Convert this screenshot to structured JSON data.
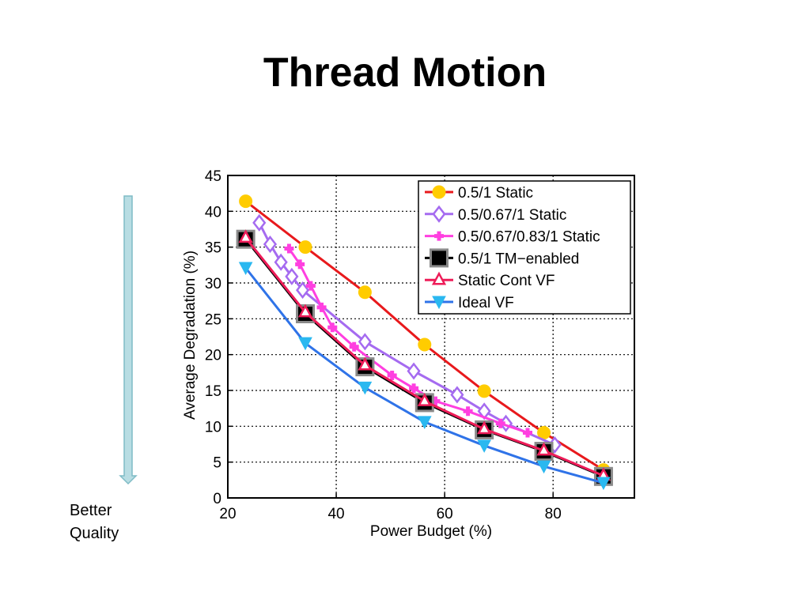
{
  "slide": {
    "title": "Thread Motion",
    "side_note": [
      "Better",
      "Quality"
    ],
    "arrow_color": "#a9d3d9"
  },
  "chart_data": {
    "type": "line",
    "xlabel": "Power Budget (%)",
    "ylabel": "Average Degradation (%)",
    "xlim": [
      20,
      95
    ],
    "ylim": [
      0,
      45
    ],
    "xticks": [
      20,
      40,
      60,
      80
    ],
    "yticks": [
      0,
      5,
      10,
      15,
      20,
      25,
      30,
      35,
      40,
      45
    ],
    "grid": true,
    "legend_position": "top-right",
    "series": [
      {
        "name": "0.5/1 Static",
        "color": "#e8191c",
        "marker": "circle",
        "marker_fill": "#ffcc00",
        "x": [
          23.3,
          34.3,
          45.3,
          56.3,
          67.3,
          78.3,
          89.3
        ],
        "y": [
          41.4,
          35.0,
          28.7,
          21.4,
          14.9,
          9.1,
          3.9
        ]
      },
      {
        "name": "0.5/0.67/1 Static",
        "color": "#a56bf0",
        "marker": "diamond",
        "marker_fill": "#ffffff",
        "x": [
          25.8,
          27.8,
          29.8,
          31.8,
          33.8,
          45.3,
          54.3,
          62.3,
          67.3,
          71.3,
          80.3
        ],
        "y": [
          38.4,
          35.4,
          32.9,
          30.9,
          29.0,
          21.8,
          17.7,
          14.4,
          12.1,
          10.4,
          7.4
        ]
      },
      {
        "name": "0.5/0.67/0.83/1 Static",
        "color": "#ff3fe0",
        "marker": "cross",
        "marker_fill": "#ff3fe0",
        "x": [
          31.3,
          33.3,
          35.3,
          37.3,
          39.3,
          43.3,
          50.3,
          54.3,
          58.3,
          64.3,
          70.3,
          75.3
        ],
        "y": [
          34.8,
          32.6,
          29.6,
          26.6,
          23.8,
          21.1,
          17.1,
          15.3,
          13.5,
          12.1,
          10.4,
          9.1
        ]
      },
      {
        "name": "0.5/1 TM−enabled",
        "color": "#000000",
        "marker": "square",
        "marker_fill": "#000000",
        "x": [
          23.3,
          34.3,
          45.3,
          56.3,
          67.3,
          78.3,
          89.3
        ],
        "y": [
          36.1,
          25.7,
          18.3,
          13.3,
          9.5,
          6.5,
          3.0
        ]
      },
      {
        "name": "Static Cont VF",
        "color": "#ee1c58",
        "marker": "triangle-up",
        "marker_fill": "#ffffff",
        "x": [
          23.3,
          34.3,
          45.3,
          56.3,
          67.3,
          78.3,
          89.3
        ],
        "y": [
          36.3,
          25.9,
          18.5,
          13.5,
          9.6,
          6.6,
          3.1
        ]
      },
      {
        "name": "Ideal VF",
        "color": "#2f73e8",
        "marker": "triangle-down",
        "marker_fill": "#2ab8f0",
        "x": [
          23.3,
          34.3,
          45.3,
          56.3,
          67.3,
          78.3,
          89.3
        ],
        "y": [
          32.1,
          21.6,
          15.4,
          10.6,
          7.3,
          4.4,
          2.1
        ]
      }
    ]
  }
}
